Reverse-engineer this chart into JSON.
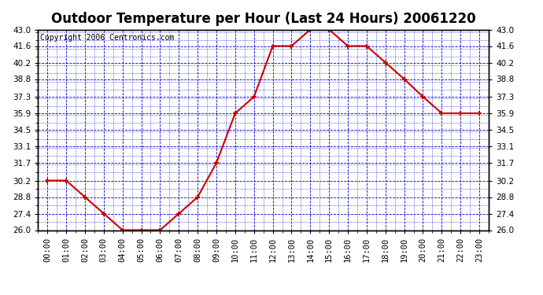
{
  "title": "Outdoor Temperature per Hour (Last 24 Hours) 20061220",
  "copyright": "Copyright 2006 Centronics.com",
  "hours": [
    0,
    1,
    2,
    3,
    4,
    5,
    6,
    7,
    8,
    9,
    10,
    11,
    12,
    13,
    14,
    15,
    16,
    17,
    18,
    19,
    20,
    21,
    22,
    23
  ],
  "temps": [
    30.2,
    30.2,
    28.8,
    27.4,
    26.0,
    26.0,
    26.0,
    27.4,
    28.8,
    31.7,
    35.9,
    37.3,
    41.6,
    41.6,
    43.0,
    43.0,
    41.6,
    41.6,
    40.2,
    38.8,
    37.3,
    35.9,
    35.9,
    35.9
  ],
  "ylim": [
    26.0,
    43.0
  ],
  "yticks": [
    26.0,
    27.4,
    28.8,
    30.2,
    31.7,
    33.1,
    34.5,
    35.9,
    37.3,
    38.8,
    40.2,
    41.6,
    43.0
  ],
  "line_color": "#cc0000",
  "marker_color": "#cc0000",
  "bg_color": "#ffffff",
  "plot_bg_color": "#ffffff",
  "grid_color": "#0000cc",
  "title_fontsize": 12,
  "copyright_fontsize": 7,
  "tick_label_fontsize": 7.5,
  "axis_label_fontsize": 8,
  "border_color": "#000000"
}
